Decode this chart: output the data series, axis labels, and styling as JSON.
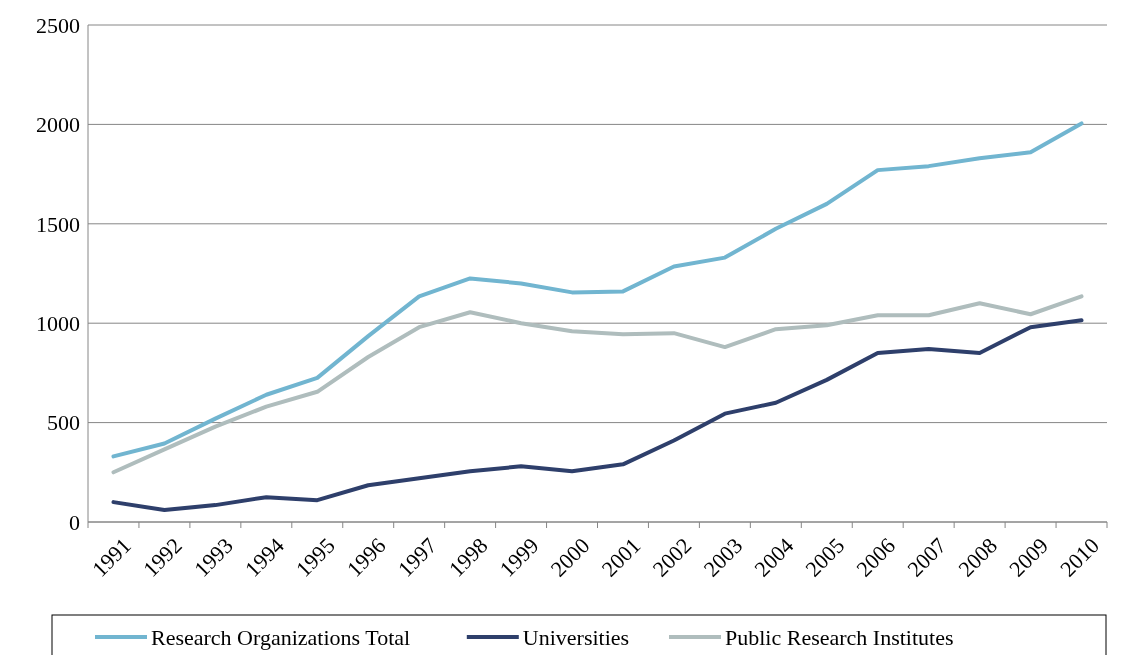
{
  "chart_data": {
    "type": "line",
    "categories": [
      "1991",
      "1992",
      "1993",
      "1994",
      "1995",
      "1996",
      "1997",
      "1998",
      "1999",
      "2000",
      "2001",
      "2002",
      "2003",
      "2004",
      "2005",
      "2006",
      "2007",
      "2008",
      "2009",
      "2010"
    ],
    "series": [
      {
        "name": "Research Organizations Total",
        "color": "#71b5d0",
        "values": [
          330,
          395,
          520,
          640,
          725,
          935,
          1135,
          1225,
          1200,
          1155,
          1160,
          1285,
          1330,
          1475,
          1600,
          1770,
          1790,
          1830,
          1860,
          2005
        ]
      },
      {
        "name": "Universities",
        "color": "#2e3f6b",
        "values": [
          100,
          60,
          85,
          125,
          110,
          185,
          220,
          255,
          280,
          255,
          290,
          410,
          545,
          600,
          715,
          850,
          870,
          850,
          980,
          1015
        ]
      },
      {
        "name": "Public Research Institutes",
        "color": "#afbdbd",
        "values": [
          250,
          365,
          480,
          580,
          655,
          830,
          980,
          1055,
          1000,
          960,
          945,
          950,
          880,
          970,
          990,
          1040,
          1040,
          1100,
          1045,
          1135
        ]
      }
    ],
    "ylim": [
      0,
      2500
    ],
    "yticks": [
      0,
      500,
      1000,
      1500,
      2000,
      2500
    ],
    "grid": "y",
    "legend": "bottom",
    "marker": "none",
    "line_style": "solid"
  }
}
